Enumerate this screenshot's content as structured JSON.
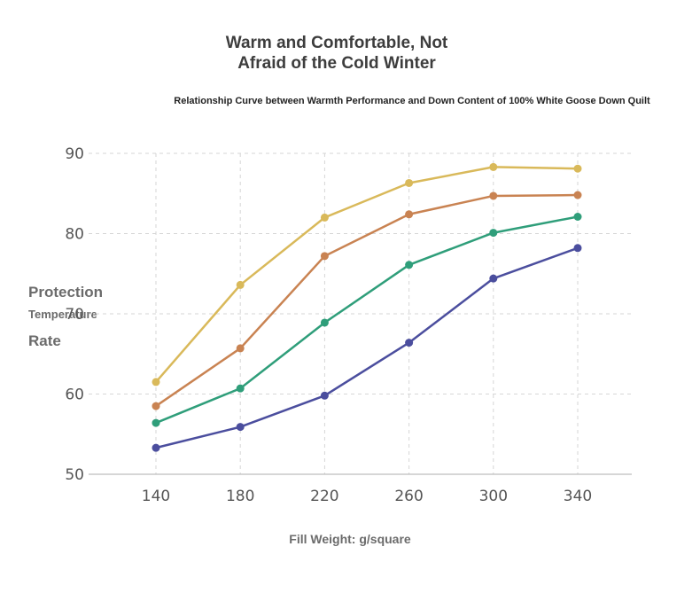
{
  "title_line1": "Warm and Comfortable, Not",
  "title_line2": "Afraid of the Cold Winter",
  "subtitle": "Relationship Curve between Warmth Performance and Down Content of 100% White Goose Down Quilt",
  "ylabel_lines": [
    "Protection",
    "Temperature",
    "Rate"
  ],
  "xlabel": "Fill Weight: g/square",
  "chart_data": {
    "type": "line",
    "categories": [
      "140",
      "180",
      "220",
      "260",
      "300",
      "340"
    ],
    "ylim": [
      50,
      90
    ],
    "yticks": [
      50,
      60,
      70,
      80,
      90
    ],
    "grid": true,
    "series": [
      {
        "color": "#d9b95a",
        "values": [
          61.5,
          73.6,
          82.0,
          86.3,
          88.3,
          88.1
        ]
      },
      {
        "color": "#c98352",
        "values": [
          58.5,
          65.7,
          77.2,
          82.4,
          84.7,
          84.8
        ]
      },
      {
        "color": "#2f9e7a",
        "values": [
          56.4,
          60.7,
          68.9,
          76.1,
          80.1,
          82.1
        ]
      },
      {
        "color": "#4b4e9e",
        "values": [
          53.3,
          55.9,
          59.8,
          66.4,
          74.4,
          78.2
        ]
      }
    ]
  }
}
